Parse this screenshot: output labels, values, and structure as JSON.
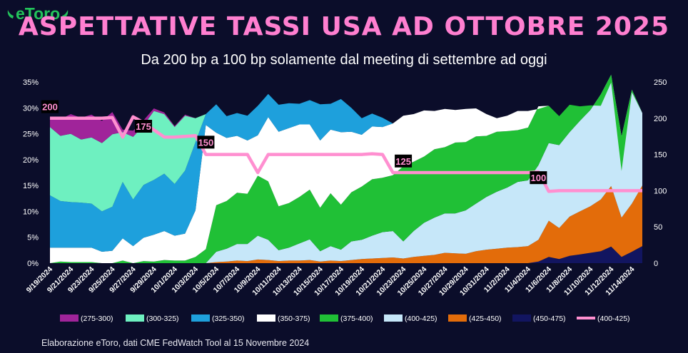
{
  "logo": {
    "text": "eToro"
  },
  "title": "ASPETTATIVE TASSI USA AD OTTOBRE 2025",
  "subtitle": "Da 200 bp a 100 bp solamente dal meeting di settembre ad oggi",
  "footer": "Elaborazione eToro, dati CME FedWatch Tool al 15 Novembre 2024",
  "chart_data": {
    "type": "area",
    "stacked": true,
    "x": [
      "9/19/2024",
      "9/20/2024",
      "9/21/2024",
      "9/22/2024",
      "9/23/2024",
      "9/24/2024",
      "9/25/2024",
      "9/26/2024",
      "9/27/2024",
      "9/28/2024",
      "9/29/2024",
      "9/30/2024",
      "10/1/2024",
      "10/2/2024",
      "10/3/2024",
      "10/4/2024",
      "10/5/2024",
      "10/6/2024",
      "10/7/2024",
      "10/8/2024",
      "10/9/2024",
      "10/10/2024",
      "10/11/2024",
      "10/12/2024",
      "10/13/2024",
      "10/14/2024",
      "10/15/2024",
      "10/16/2024",
      "10/17/2024",
      "10/18/2024",
      "10/19/2024",
      "10/20/2024",
      "10/21/2024",
      "10/22/2024",
      "10/23/2024",
      "10/24/2024",
      "10/25/2024",
      "10/26/2024",
      "10/27/2024",
      "10/28/2024",
      "10/29/2024",
      "10/30/2024",
      "10/31/2024",
      "11/1/2024",
      "11/2/2024",
      "11/3/2024",
      "11/4/2024",
      "11/5/2024",
      "11/6/2024",
      "11/7/2024",
      "11/8/2024",
      "11/9/2024",
      "11/10/2024",
      "11/11/2024",
      "11/12/2024",
      "11/13/2024",
      "11/14/2024",
      "11/15/2024"
    ],
    "x_tick_labels": [
      "9/19/2024",
      "9/21/2024",
      "9/23/2024",
      "9/25/2024",
      "9/27/2024",
      "9/29/2024",
      "10/1/2024",
      "10/3/2024",
      "10/5/2024",
      "10/7/2024",
      "10/9/2024",
      "10/11/2024",
      "10/13/2024",
      "10/15/2024",
      "10/17/2024",
      "10/19/2024",
      "10/21/2024",
      "10/23/2024",
      "10/25/2024",
      "10/27/2024",
      "10/29/2024",
      "10/31/2024",
      "11/2/2024",
      "11/4/2024",
      "11/6/2024",
      "11/8/2024",
      "11/10/2024",
      "11/12/2024",
      "11/14/2024"
    ],
    "y_left": {
      "min": 0,
      "max": 35,
      "ticks": [
        "0%",
        "5%",
        "10%",
        "15%",
        "20%",
        "25%",
        "30%",
        "35%"
      ]
    },
    "y_right": {
      "min": 0,
      "max": 250,
      "ticks": [
        "0",
        "50",
        "100",
        "150",
        "200",
        "250"
      ]
    },
    "grid": false,
    "legend_position": "bottom",
    "series": [
      {
        "name": "(450-475)",
        "color": "#121560",
        "values": [
          0,
          0,
          0,
          0,
          0,
          0,
          0,
          0,
          0,
          0,
          0,
          0,
          0,
          0,
          0,
          0,
          0,
          0,
          0,
          0,
          0,
          0,
          0,
          0,
          0,
          0,
          0,
          0,
          0,
          0,
          0,
          0,
          0,
          0,
          0,
          0,
          0,
          0,
          0,
          0,
          0,
          0,
          0,
          0,
          0,
          0,
          0,
          0.3,
          1.2,
          0.8,
          1.4,
          1.7,
          2,
          2.3,
          3.2,
          1.2,
          2.2,
          3.3
        ]
      },
      {
        "name": "(425-450)",
        "color": "#e36c0a",
        "values": [
          0,
          0,
          0,
          0,
          0,
          0,
          0,
          0,
          0,
          0,
          0,
          0,
          0,
          0,
          0,
          0,
          0.2,
          0.3,
          0.5,
          0.4,
          0.7,
          0.6,
          0.4,
          0.5,
          0.5,
          0.6,
          0.3,
          0.5,
          0.4,
          0.6,
          0.8,
          0.9,
          1,
          1.1,
          0.9,
          1.2,
          1.4,
          1.6,
          2,
          1.9,
          1.8,
          2.3,
          2.6,
          2.8,
          3,
          3.1,
          3.3,
          4.2,
          7,
          6,
          7.6,
          8.3,
          9,
          10,
          11.7,
          7.6,
          9.3,
          11.7
        ]
      },
      {
        "name": "(400-425)",
        "color": "#c6e7f9",
        "values": [
          0,
          0,
          0,
          0,
          0,
          0,
          0,
          0,
          0,
          0,
          0,
          0,
          0,
          0,
          0,
          0,
          2,
          2.5,
          3.2,
          3.3,
          4.6,
          3.9,
          2.1,
          2.5,
          3.3,
          4,
          2,
          2.8,
          2.2,
          3.6,
          3.7,
          4.4,
          5,
          5.1,
          3.3,
          5,
          6.4,
          7.2,
          7.6,
          7.7,
          8.4,
          9.2,
          10.2,
          11,
          11.6,
          12.6,
          12.7,
          14.4,
          15,
          16,
          16.3,
          17.5,
          18.6,
          20.3,
          21.5,
          15.7,
          22,
          14
        ]
      },
      {
        "name": "(375-400)",
        "color": "#20c036",
        "values": [
          0,
          0.3,
          0.2,
          0.2,
          0.2,
          0,
          0,
          0.5,
          0,
          0.4,
          0.3,
          0.6,
          0.5,
          0.5,
          1.2,
          2.7,
          9,
          9.2,
          9.9,
          9.7,
          11.6,
          11.3,
          8.5,
          8.6,
          9,
          9.6,
          8.4,
          10.2,
          8.7,
          9.5,
          10.3,
          10.9,
          10.5,
          10.8,
          14.5,
          13.4,
          12.8,
          13.2,
          12.8,
          13.7,
          13.2,
          13,
          11.8,
          11.6,
          10.9,
          10,
          10.2,
          11.4,
          7.2,
          5.6,
          5.3,
          2.8,
          0.9,
          -2.2,
          -1.5,
          -6.7,
          -0.5,
          0
        ]
      },
      {
        "name": "(350-375)",
        "color": "#ffffff",
        "values": [
          3,
          2.7,
          2.8,
          2.8,
          2.8,
          2.2,
          2.4,
          4.3,
          3.3,
          4.5,
          5.2,
          5.6,
          4.8,
          5.2,
          9,
          24,
          14,
          12.2,
          11,
          10.3,
          7.8,
          12.4,
          14.4,
          14.5,
          14,
          12.6,
          13,
          12.3,
          14,
          11.7,
          10,
          10.2,
          9.8,
          10,
          9.8,
          9.2,
          8.9,
          7.4,
          7.4,
          6.3,
          6.4,
          5.4,
          4.2,
          2.6,
          3,
          3.7,
          3.2,
          -0.5,
          0,
          0,
          0,
          0,
          0,
          0,
          0,
          0,
          0,
          0
        ]
      },
      {
        "name": "(325-350)",
        "color": "#1ea0dc",
        "values": [
          10.1,
          9,
          8.8,
          8.7,
          8.5,
          7.8,
          8.5,
          10.9,
          9,
          10.2,
          10.6,
          11.1,
          10,
          12.2,
          13.2,
          2.1,
          5.5,
          4.2,
          4.4,
          4.8,
          5.7,
          4.5,
          5.2,
          4.8,
          4,
          4.7,
          7,
          5,
          6.4,
          4.6,
          3.2,
          2.5,
          1.8,
          0,
          0,
          0,
          0,
          0,
          0,
          0,
          0,
          0,
          0,
          0,
          0,
          0,
          0,
          0,
          0,
          0,
          0,
          0,
          0,
          0,
          0,
          0,
          0,
          0
        ]
      },
      {
        "name": "(300-325)",
        "color": "#6ef0c0",
        "values": [
          13.2,
          12.6,
          13.2,
          12.2,
          12.8,
          13.2,
          14,
          9.6,
          12.1,
          11.5,
          13.3,
          11.5,
          11,
          10.6,
          4.6,
          0,
          0,
          0,
          0,
          0,
          0,
          0,
          0,
          0,
          0,
          0,
          0,
          0,
          0,
          0,
          0,
          0,
          0,
          0,
          0,
          0,
          0,
          0,
          0,
          0,
          0,
          0,
          0,
          0,
          0,
          0,
          0,
          0,
          0,
          0,
          0,
          0,
          0,
          0,
          0,
          0,
          0,
          0
        ]
      },
      {
        "name": "(275-300)",
        "color": "#a0249a",
        "values": [
          1.5,
          3.2,
          3.8,
          4.2,
          4.4,
          4.3,
          4.3,
          0.5,
          1.2,
          1,
          0.5,
          0.3,
          0.2,
          0.2,
          0,
          0,
          0,
          0,
          0,
          0,
          0,
          0,
          0,
          0,
          0,
          0,
          0,
          0,
          0,
          0,
          0,
          0,
          0,
          0,
          0,
          0,
          0,
          0,
          0,
          0,
          0,
          0,
          0,
          0,
          0,
          0,
          0,
          0,
          0,
          0,
          0,
          0,
          0,
          0,
          0,
          0,
          0,
          0
        ]
      }
    ],
    "line_series": {
      "name": "(400-425)",
      "color": "#ff8fd0",
      "axis": "right",
      "values": [
        200,
        200,
        200,
        200,
        200,
        200,
        201,
        174,
        202,
        194,
        184,
        174,
        174,
        175,
        176,
        150,
        150,
        150,
        150,
        150,
        125,
        150,
        150,
        150,
        150,
        150,
        150,
        150,
        150,
        150,
        150,
        151,
        150,
        125,
        125,
        125,
        125,
        125,
        125,
        125,
        125,
        125,
        125,
        125,
        125,
        125,
        125,
        126,
        99,
        100,
        100,
        100,
        100,
        100,
        100,
        100,
        100,
        100
      ]
    },
    "annotations": [
      {
        "label": "200",
        "x": "9/19/2024",
        "y": 215
      },
      {
        "label": "175",
        "x": "9/28/2024",
        "y": 188
      },
      {
        "label": "150",
        "x": "10/4/2024",
        "y": 166
      },
      {
        "label": "125",
        "x": "10/23/2024",
        "y": 140
      },
      {
        "label": "100",
        "x": "11/5/2024",
        "y": 117
      }
    ],
    "legend_order": [
      "(275-300)",
      "(300-325)",
      "(325-350)",
      "(350-375)",
      "(375-400)",
      "(400-425)",
      "(425-450)",
      "(450-475)",
      "(400-425)"
    ]
  }
}
